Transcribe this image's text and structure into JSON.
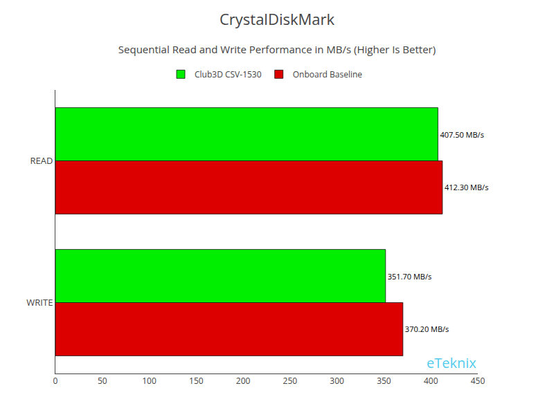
{
  "chart_data": {
    "type": "bar",
    "orientation": "horizontal",
    "title": "CrystalDiskMark",
    "subtitle": "Sequential Read and Write Performance in MB/s (Higher Is Better)",
    "categories": [
      "WRITE",
      "READ"
    ],
    "series": [
      {
        "name": "Club3D CSV-1530",
        "color": "#00EE00",
        "values": [
          351.7,
          407.5
        ],
        "value_labels": [
          "351.70 MB/s",
          "407.50 MB/s"
        ]
      },
      {
        "name": "Onboard Baseline",
        "color": "#DD0000",
        "values": [
          370.2,
          412.3
        ],
        "value_labels": [
          "370.20 MB/s",
          "412.30 MB/s"
        ]
      }
    ],
    "xlim": [
      0,
      450
    ],
    "xticks": [
      0,
      50,
      100,
      150,
      200,
      250,
      300,
      350,
      400,
      450
    ],
    "data_labels": true,
    "grid": false,
    "legend": "upper center",
    "annotations": [
      "eTeknix"
    ]
  }
}
